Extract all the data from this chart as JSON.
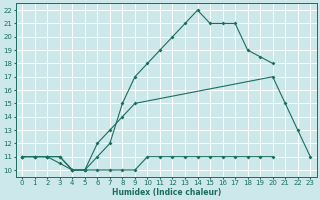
{
  "xlabel": "Humidex (Indice chaleur)",
  "bg_color": "#cce8ea",
  "grid_color": "#ffffff",
  "line_color": "#1a6e5e",
  "xlim": [
    -0.5,
    23.5
  ],
  "ylim": [
    9.5,
    22.5
  ],
  "xticks": [
    0,
    1,
    2,
    3,
    4,
    5,
    6,
    7,
    8,
    9,
    10,
    11,
    12,
    13,
    14,
    15,
    16,
    17,
    18,
    19,
    20,
    21,
    22,
    23
  ],
  "yticks": [
    10,
    11,
    12,
    13,
    14,
    15,
    16,
    17,
    18,
    19,
    20,
    21,
    22
  ],
  "curve1_x": [
    0,
    1,
    2,
    3,
    4,
    5,
    6,
    7,
    8,
    9,
    10,
    11,
    12,
    13,
    14,
    15,
    16,
    17,
    18,
    19,
    20
  ],
  "curve1_y": [
    11,
    11,
    11,
    10.5,
    10,
    10,
    11,
    12,
    15,
    17,
    18,
    19,
    20,
    21,
    22,
    21,
    21,
    21,
    19,
    18.5,
    18
  ],
  "curve2_x": [
    0,
    1,
    2,
    3,
    4,
    5,
    6,
    7,
    8,
    9,
    20,
    21,
    22,
    23
  ],
  "curve2_y": [
    11,
    11,
    11,
    11,
    10,
    10,
    12,
    13,
    14,
    15,
    17,
    15,
    13,
    11
  ],
  "curve3_x": [
    0,
    1,
    2,
    3,
    4,
    5,
    6,
    7,
    8,
    9,
    10,
    11,
    12,
    13,
    14,
    15,
    16,
    17,
    18,
    19,
    20
  ],
  "curve3_y": [
    11,
    11,
    11,
    11,
    10,
    10,
    10,
    10,
    10,
    10,
    11,
    11,
    11,
    11,
    11,
    11,
    11,
    11,
    11,
    11,
    11
  ]
}
